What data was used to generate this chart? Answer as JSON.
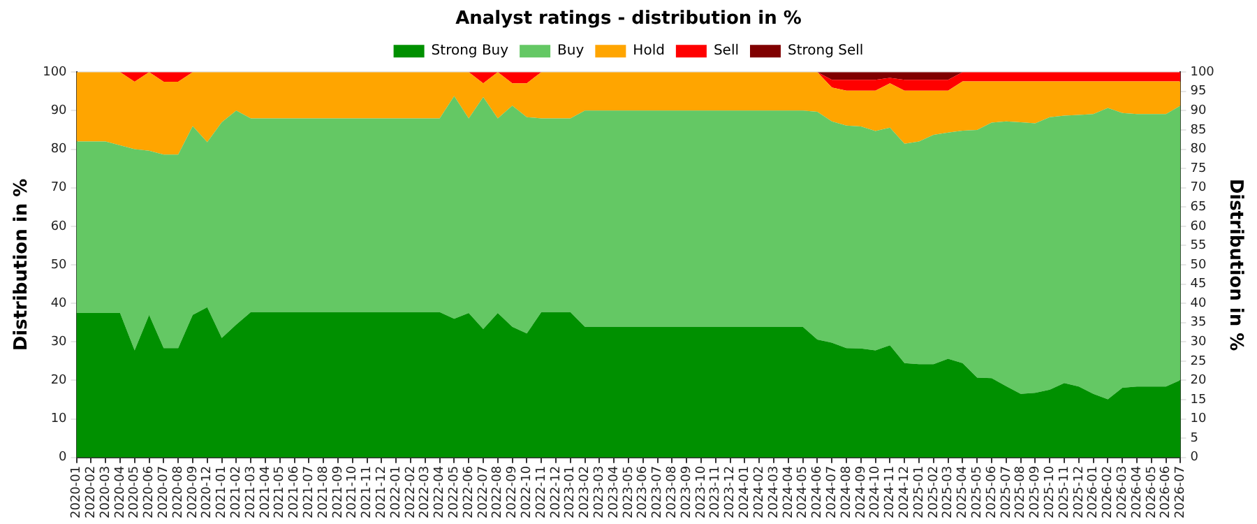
{
  "chart_data": {
    "type": "area",
    "title": "Analyst ratings - distribution in %",
    "ylabel": "Distribution in %",
    "y2label": "Distribution in %",
    "stacked": true,
    "categories": [
      "2020-01",
      "2020-02",
      "2020-03",
      "2020-04",
      "2020-05",
      "2020-06",
      "2020-07",
      "2020-08",
      "2020-09",
      "2020-12",
      "2021-01",
      "2021-02",
      "2021-03",
      "2021-04",
      "2021-05",
      "2021-06",
      "2021-07",
      "2021-08",
      "2021-09",
      "2021-10",
      "2021-11",
      "2021-12",
      "2022-01",
      "2022-02",
      "2022-03",
      "2022-04",
      "2022-05",
      "2022-06",
      "2022-07",
      "2022-08",
      "2022-09",
      "2022-10",
      "2022-11",
      "2022-12",
      "2023-01",
      "2023-02",
      "2023-03",
      "2023-04",
      "2023-05",
      "2023-06",
      "2023-07",
      "2023-08",
      "2023-09",
      "2023-10",
      "2023-11",
      "2023-12",
      "2024-01",
      "2024-02",
      "2024-03",
      "2024-04",
      "2024-05",
      "2024-06",
      "2024-07",
      "2024-08",
      "2024-09",
      "2024-10",
      "2024-11",
      "2024-12",
      "2025-01",
      "2025-02",
      "2025-03",
      "2025-04",
      "2025-05",
      "2025-06",
      "2025-07",
      "2025-08",
      "2025-09",
      "2025-10",
      "2025-11",
      "2025-12",
      "2026-01",
      "2026-02",
      "2026-03",
      "2026-04",
      "2026-05",
      "2026-06",
      "2026-07"
    ],
    "series": [
      {
        "name": "Strong Buy",
        "color": "#009000",
        "values": [
          37.5,
          37.5,
          37.5,
          37.5,
          27.8,
          37,
          28.4,
          28.4,
          37,
          39,
          31,
          34.5,
          37.7,
          37.7,
          37.7,
          37.7,
          37.7,
          37.7,
          37.7,
          37.7,
          37.7,
          37.7,
          37.7,
          37.7,
          37.7,
          37.7,
          36,
          37.5,
          33.3,
          37.5,
          33.9,
          32.2,
          37.7,
          37.7,
          37.7,
          33.9,
          33.9,
          33.9,
          33.9,
          33.9,
          33.9,
          33.9,
          33.9,
          33.9,
          33.9,
          33.9,
          33.9,
          33.9,
          33.9,
          33.9,
          33.9,
          30.6,
          29.8,
          28.4,
          28.3,
          27.8,
          29.1,
          24.5,
          24.2,
          24.2,
          25.6,
          24.5,
          20.7,
          20.6,
          18.5,
          16.5,
          16.8,
          17.6,
          19.3,
          18.4,
          16.5,
          15.1,
          18.1,
          18.4,
          18.4,
          18.4,
          20.1
        ]
      },
      {
        "name": "Buy",
        "color": "#64c864",
        "values": [
          44.5,
          44.5,
          44.5,
          43.5,
          52.2,
          42.6,
          50.2,
          50.2,
          49,
          42.8,
          56,
          55.5,
          50.3,
          50.3,
          50.3,
          50.3,
          50.3,
          50.3,
          50.3,
          50.3,
          50.3,
          50.3,
          50.3,
          50.3,
          50.3,
          50.3,
          57.8,
          50.5,
          60.2,
          50.5,
          57.4,
          56.1,
          50.3,
          50.3,
          50.3,
          56.1,
          56.1,
          56.1,
          56.1,
          56.1,
          56.1,
          56.1,
          56.1,
          56.1,
          56.1,
          56.1,
          56.1,
          56.1,
          56.1,
          56.1,
          56.1,
          59.1,
          57.4,
          57.7,
          57.6,
          56.9,
          56.5,
          56.9,
          57.8,
          59.5,
          58.7,
          60.3,
          64.3,
          66.3,
          68.7,
          70.5,
          69.9,
          70.7,
          69.4,
          70.5,
          72.6,
          75.6,
          71.3,
          70.7,
          70.7,
          70.7,
          71.2
        ]
      },
      {
        "name": "Hold",
        "color": "#ffa500",
        "values": [
          18,
          18,
          18,
          19,
          17.5,
          20.4,
          18.9,
          18.9,
          14,
          18.2,
          13,
          10,
          12,
          12,
          12,
          12,
          12,
          12,
          12,
          12,
          12,
          12,
          12,
          12,
          12,
          12,
          6.2,
          12,
          3.6,
          12,
          5.8,
          8.8,
          12,
          12,
          12,
          10,
          10,
          10,
          10,
          10,
          10,
          10,
          10,
          10,
          10,
          10,
          10,
          10,
          10,
          10,
          10,
          10.3,
          8.8,
          9.1,
          9.3,
          10.5,
          11.5,
          13.8,
          13.2,
          11.5,
          10.9,
          12.8,
          12.6,
          10.7,
          10.4,
          10.6,
          10.9,
          9.3,
          8.9,
          8.7,
          8.5,
          6.9,
          8.2,
          8.5,
          8.5,
          8.5,
          6.3
        ]
      },
      {
        "name": "Sell",
        "color": "#ff0000",
        "values": [
          0,
          0,
          0,
          0,
          2.5,
          0,
          2.5,
          2.5,
          0,
          0,
          0,
          0,
          0,
          0,
          0,
          0,
          0,
          0,
          0,
          0,
          0,
          0,
          0,
          0,
          0,
          0,
          0,
          0,
          2.9,
          0,
          2.9,
          2.9,
          0,
          0,
          0,
          0,
          0,
          0,
          0,
          0,
          0,
          0,
          0,
          0,
          0,
          0,
          0,
          0,
          0,
          0,
          0,
          0,
          2,
          2.8,
          2.8,
          2.8,
          1.4,
          2.8,
          2.8,
          2.8,
          2.8,
          2.4,
          2.4,
          2.4,
          2.4,
          2.4,
          2.4,
          2.4,
          2.4,
          2.4,
          2.4,
          2.4,
          2.4,
          2.4,
          2.4,
          2.4,
          2.4
        ]
      },
      {
        "name": "Strong Sell",
        "color": "#800000",
        "values": [
          0,
          0,
          0,
          0,
          0,
          0,
          0,
          0,
          0,
          0,
          0,
          0,
          0,
          0,
          0,
          0,
          0,
          0,
          0,
          0,
          0,
          0,
          0,
          0,
          0,
          0,
          0,
          0,
          0,
          0,
          0,
          0,
          0,
          0,
          0,
          0,
          0,
          0,
          0,
          0,
          0,
          0,
          0,
          0,
          0,
          0,
          0,
          0,
          0,
          0,
          0,
          0,
          2,
          2,
          2,
          2,
          1.5,
          2,
          2,
          2,
          2,
          0,
          0,
          0,
          0,
          0,
          0,
          0,
          0,
          0,
          0,
          0,
          0,
          0,
          0,
          0,
          0
        ]
      }
    ],
    "ylim": [
      0,
      100
    ],
    "yticks": [
      0,
      10,
      20,
      30,
      40,
      50,
      60,
      70,
      80,
      90,
      100
    ],
    "y2lim": [
      0,
      100
    ],
    "y2ticks": [
      0,
      5,
      10,
      15,
      20,
      25,
      30,
      35,
      40,
      45,
      50,
      55,
      60,
      65,
      70,
      75,
      80,
      85,
      90,
      95,
      100
    ],
    "grid": "y",
    "legend": "top"
  }
}
